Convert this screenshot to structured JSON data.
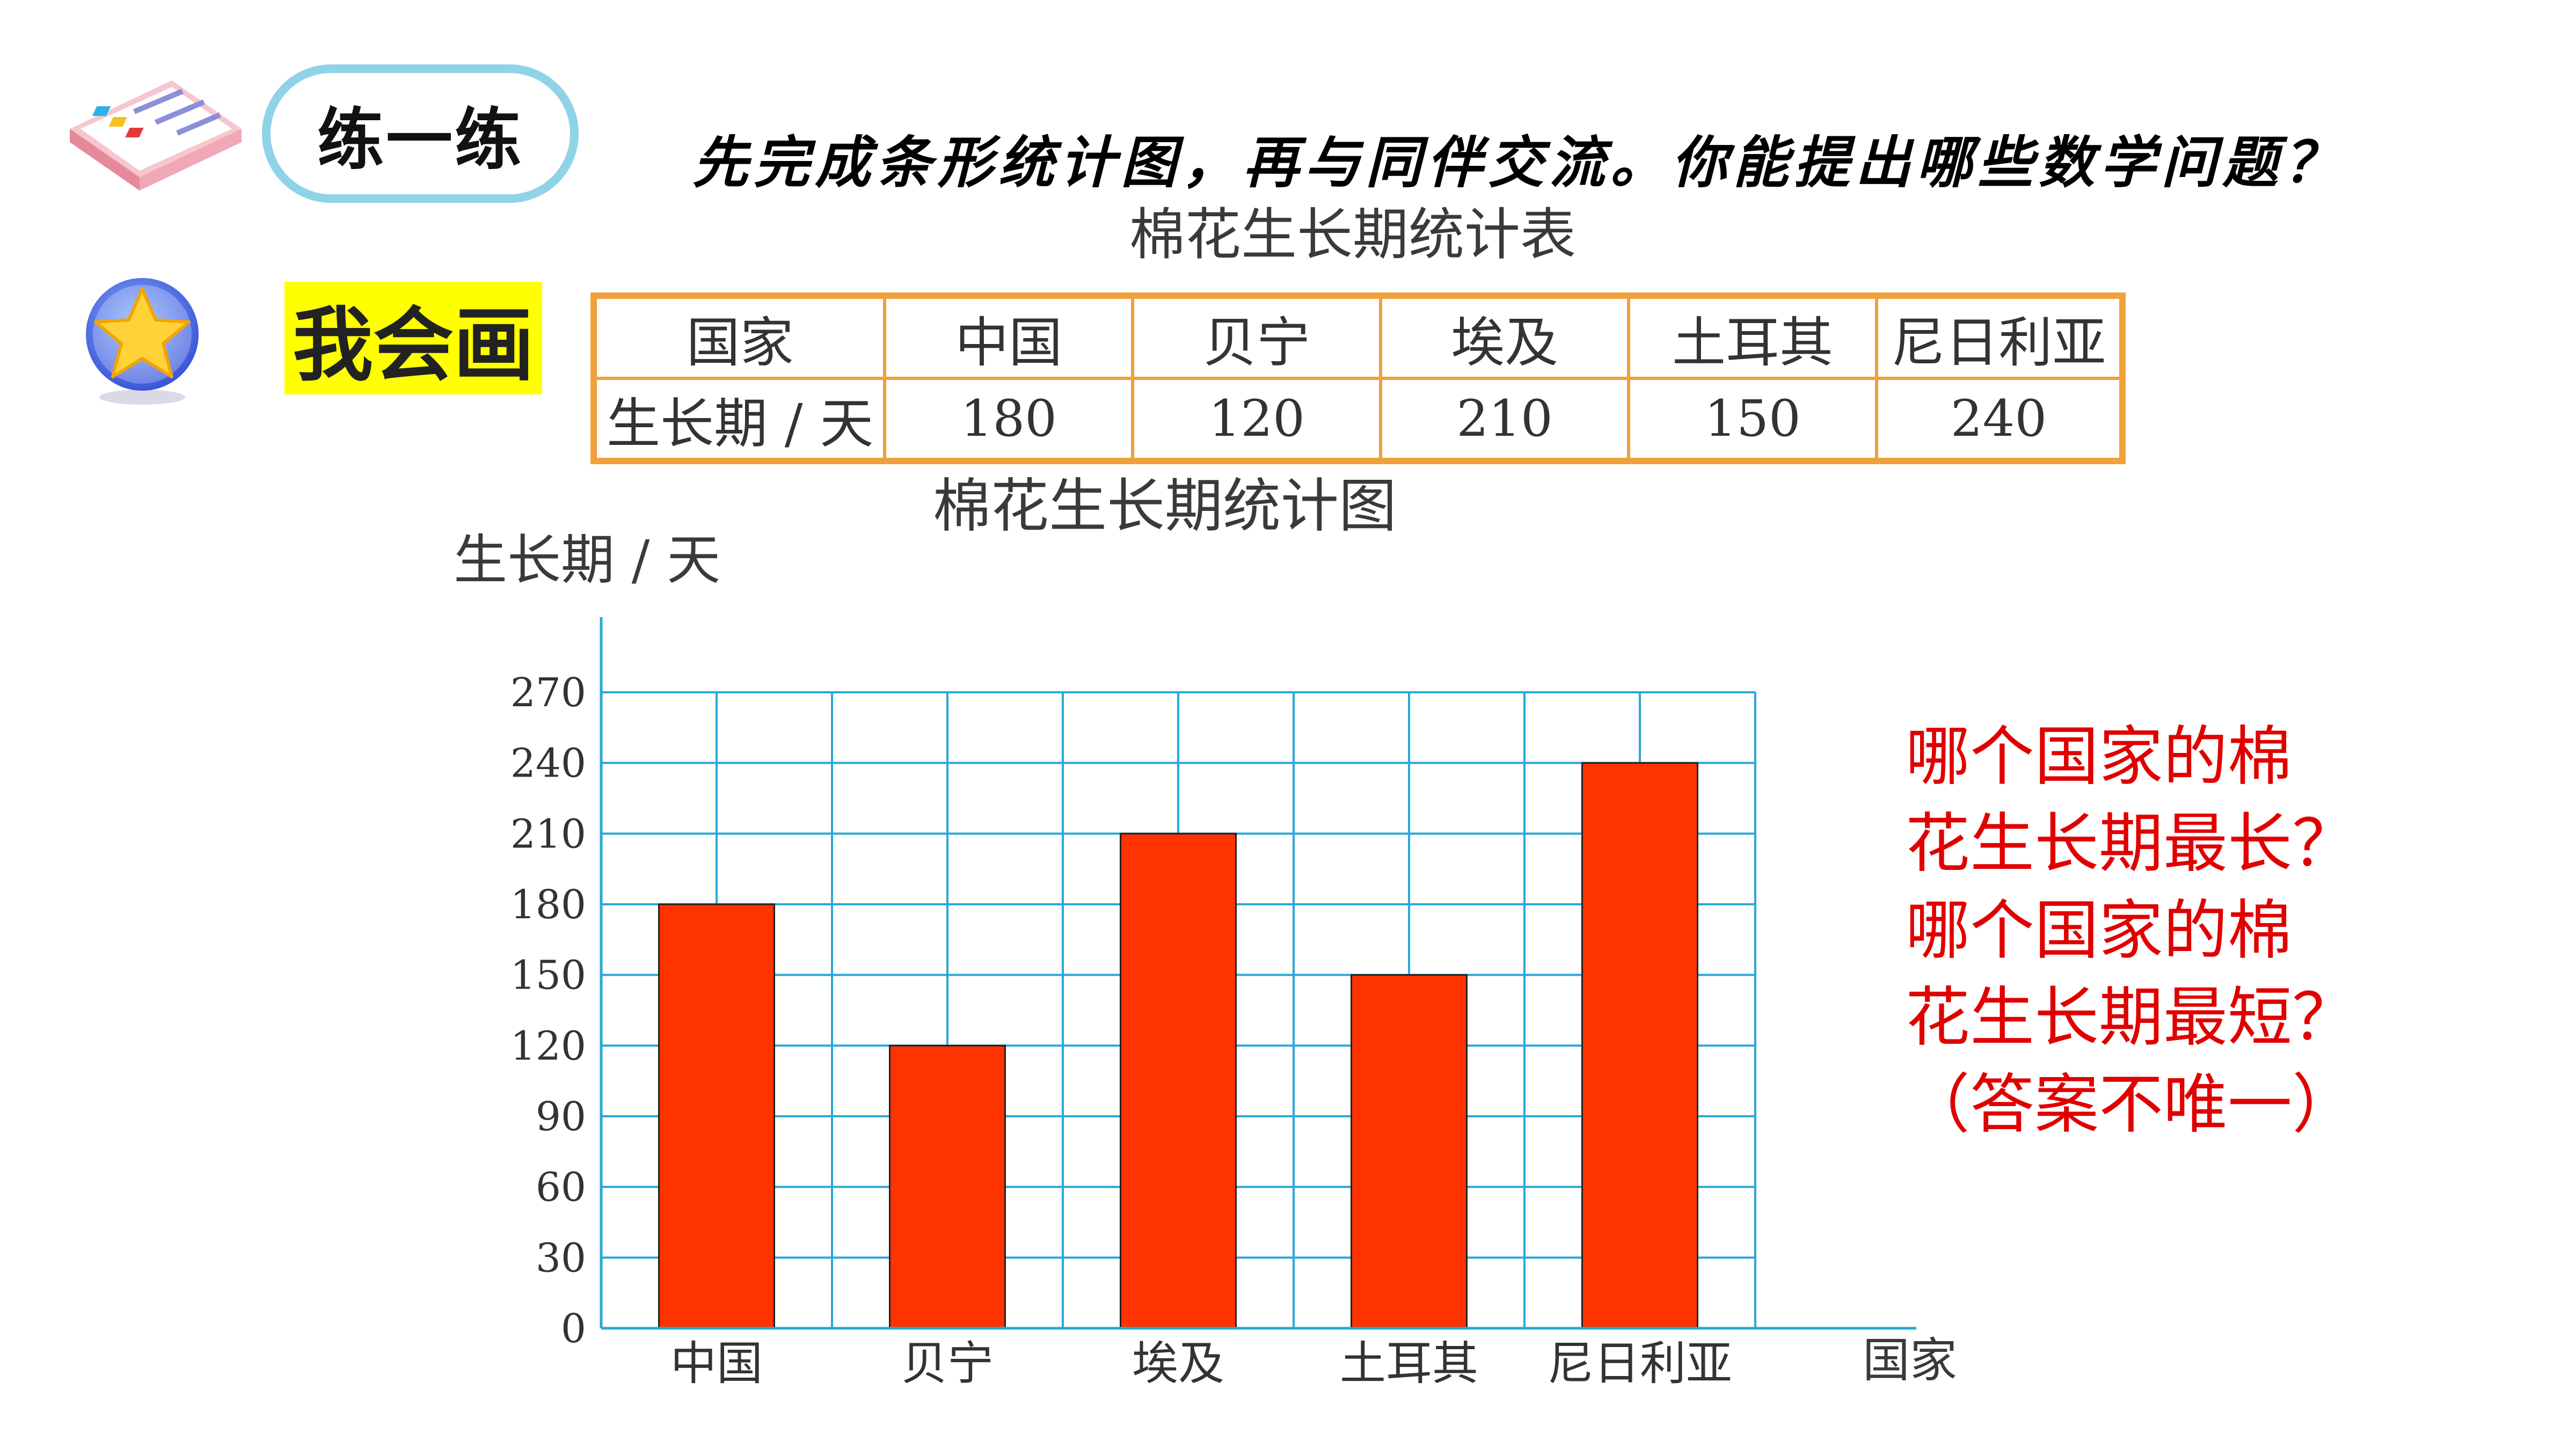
{
  "header": {
    "practice_label": "练一练",
    "instruction": "先完成条形统计图，再与同伴交流。你能提出哪些数学问题？",
    "draw_label": "我会画"
  },
  "icons": [
    "checklist-icon",
    "star-icon"
  ],
  "table": {
    "title": "棉花生长期统计表",
    "header_row": [
      "国家",
      "中国",
      "贝宁",
      "埃及",
      "土耳其",
      "尼日利亚"
    ],
    "value_row_label": "生长期 / 天",
    "values": [
      "180",
      "120",
      "210",
      "150",
      "240"
    ]
  },
  "chart_data": {
    "type": "bar",
    "title": "棉花生长期统计图",
    "ylabel": "生长期 / 天",
    "xlabel": "国家",
    "categories": [
      "中国",
      "贝宁",
      "埃及",
      "土耳其",
      "尼日利亚"
    ],
    "values": [
      180,
      120,
      210,
      150,
      240
    ],
    "ylim": [
      0,
      270
    ],
    "yticks": [
      "0",
      "30",
      "60",
      "90",
      "120",
      "150",
      "180",
      "210",
      "240",
      "270"
    ],
    "grid": true,
    "bar_color": "#ff3300",
    "grid_color": "#29a8d8"
  },
  "questions": {
    "lines": [
      "哪个国家的棉",
      "花生长期最长？",
      "哪个国家的棉",
      "花生长期最短？",
      "（答案不唯一）"
    ],
    "color": "#e00000"
  }
}
